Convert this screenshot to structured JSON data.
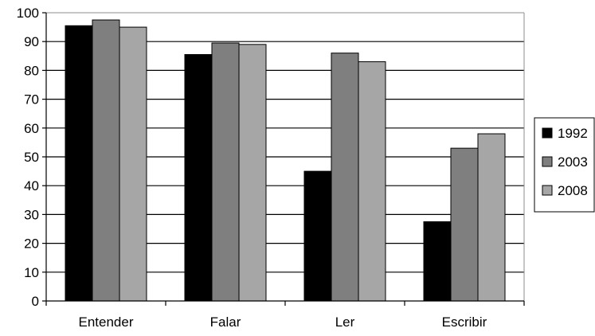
{
  "chart_data": {
    "type": "bar",
    "categories": [
      "Entender",
      "Falar",
      "Ler",
      "Escribir"
    ],
    "series": [
      {
        "name": "1992",
        "values": [
          95.5,
          85.5,
          45,
          27.5
        ],
        "color": "#000000"
      },
      {
        "name": "2003",
        "values": [
          97.5,
          89.5,
          86,
          53
        ],
        "color": "#7f7f7f"
      },
      {
        "name": "2008",
        "values": [
          95,
          89,
          83,
          58
        ],
        "color": "#a6a6a6"
      }
    ],
    "ylim": [
      0,
      100
    ],
    "yticks": [
      "0",
      "10",
      "20",
      "30",
      "40",
      "50",
      "60",
      "70",
      "80",
      "90",
      "100"
    ],
    "grid": true,
    "legend": "right"
  }
}
